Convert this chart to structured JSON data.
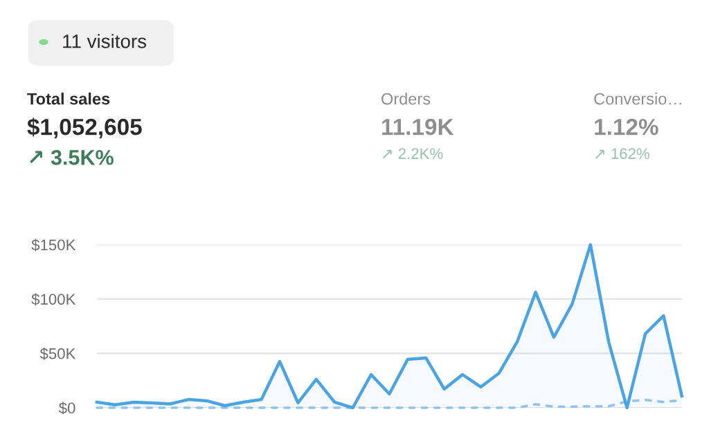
{
  "chart_data": {
    "type": "area",
    "categories": [
      null,
      null,
      null,
      null,
      null,
      null,
      null,
      null,
      null,
      null,
      null,
      null,
      null,
      null,
      null,
      null,
      null,
      null,
      null,
      null,
      null,
      null,
      null,
      null,
      null,
      null,
      null,
      null,
      null,
      null,
      null,
      null,
      null
    ],
    "series": [
      {
        "color": "#4aa3e3",
        "values": [
          5.1,
          2.7,
          5.1,
          4.5,
          3.5,
          7.6,
          6.4,
          1.9,
          5.1,
          7.6,
          42.6,
          4.5,
          26.1,
          5.1,
          0,
          30.5,
          12.7,
          44.5,
          45.8,
          17.2,
          30.5,
          19.1,
          31.8,
          61.0,
          106.2,
          64.8,
          95.4,
          150,
          60.4,
          0,
          68.0,
          84.6,
          10.8
        ]
      },
      {
        "type": "line",
        "color": "#8fc3ea",
        "line_style": "dashed",
        "values": [
          0,
          0,
          0,
          0,
          0,
          0,
          0,
          0,
          0,
          0,
          0,
          0,
          0,
          0,
          0,
          0,
          0,
          0,
          0,
          0,
          0,
          0,
          0,
          0,
          3.2,
          1.0,
          1.0,
          1.3,
          1.3,
          5.9,
          7.2,
          5.3,
          7.0
        ]
      }
    ],
    "ylim": [
      0,
      150
    ],
    "yticks": [
      {
        "value": 0,
        "label": "$0"
      },
      {
        "value": 50,
        "label": "$50K"
      },
      {
        "value": 100,
        "label": "$100K"
      },
      {
        "value": 150,
        "label": "$150K"
      }
    ],
    "grid": "y",
    "tick_labels": "y",
    "legend": false,
    "annotations": [
      "11 visitors",
      "Total sales",
      "$1,052,605",
      "↗ 3.5K%",
      "Orders",
      "11.19K",
      "↗ 2.2K%",
      "Conversio…",
      "1.12%",
      "↗ 162%"
    ]
  }
}
